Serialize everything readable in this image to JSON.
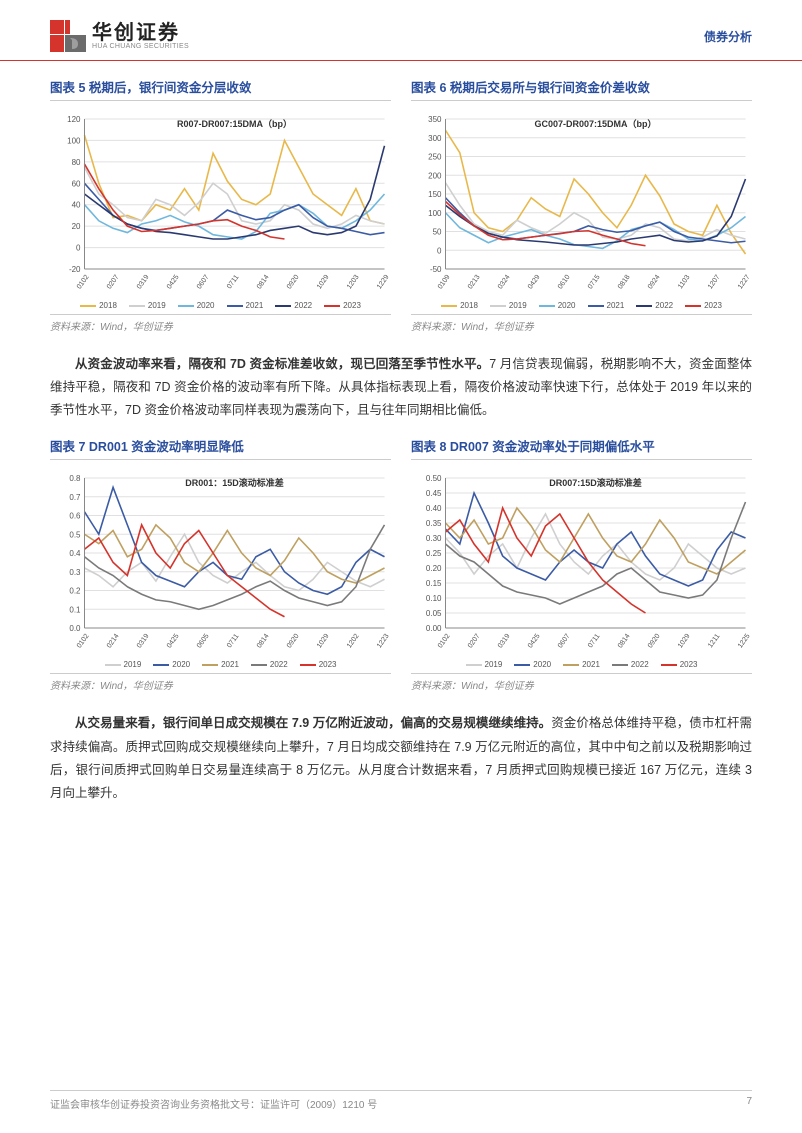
{
  "header": {
    "company_cn": "华创证券",
    "company_en": "HUA CHUANG SECURITIES",
    "category": "债券分析",
    "logo_red": "#d4342c",
    "logo_gray": "#6b6b6b"
  },
  "charts": {
    "c5": {
      "title": "图表 5   税期后，银行间资金分层收敛",
      "series_label": "R007-DR007:15DMA（bp）",
      "ylim": [
        -20,
        120
      ],
      "ytick_step": 20,
      "xticks": [
        "0102",
        "0207",
        "0319",
        "0425",
        "0607",
        "0711",
        "0814",
        "0920",
        "1029",
        "1203",
        "1229"
      ],
      "source": "资料来源：Wind，华创证券",
      "bg": "#ffffff",
      "grid": "#e0e0e0",
      "series": [
        {
          "year": "2018",
          "color": "#e8b84a",
          "data": [
            105,
            60,
            28,
            30,
            25,
            40,
            35,
            55,
            35,
            88,
            62,
            45,
            40,
            50,
            100,
            75,
            50,
            40,
            30,
            55,
            25,
            22
          ]
        },
        {
          "year": "2019",
          "color": "#cfcfcf",
          "data": [
            75,
            50,
            40,
            28,
            25,
            45,
            40,
            30,
            42,
            60,
            50,
            25,
            22,
            25,
            40,
            35,
            22,
            18,
            22,
            30,
            25,
            22
          ]
        },
        {
          "year": "2020",
          "color": "#6fb7dd",
          "data": [
            40,
            25,
            18,
            14,
            22,
            25,
            30,
            24,
            20,
            12,
            10,
            8,
            15,
            32,
            35,
            40,
            32,
            20,
            18,
            25,
            35,
            50
          ]
        },
        {
          "year": "2021",
          "color": "#3b5ba5",
          "data": [
            60,
            45,
            30,
            22,
            18,
            16,
            18,
            20,
            22,
            25,
            35,
            30,
            26,
            28,
            35,
            40,
            28,
            20,
            18,
            15,
            12,
            14
          ]
        },
        {
          "year": "2022",
          "color": "#2a3a70",
          "data": [
            50,
            40,
            30,
            22,
            18,
            15,
            14,
            12,
            10,
            8,
            8,
            10,
            12,
            16,
            18,
            20,
            14,
            12,
            14,
            20,
            45,
            95
          ]
        },
        {
          "year": "2023",
          "color": "#d4342c",
          "data": [
            78,
            55,
            35,
            20,
            15,
            16,
            18,
            20,
            22,
            25,
            26,
            20,
            16,
            10,
            8
          ]
        }
      ]
    },
    "c6": {
      "title": "图表 6   税期后交易所与银行间资金价差收敛",
      "series_label": "GC007-DR007:15DMA（bp）",
      "ylim": [
        -50,
        350
      ],
      "ytick_step": 50,
      "xticks": [
        "0109",
        "0213",
        "0324",
        "0429",
        "0610",
        "0715",
        "0818",
        "0924",
        "1103",
        "1207",
        "1227"
      ],
      "source": "资料来源：Wind，华创证券",
      "bg": "#ffffff",
      "grid": "#e0e0e0",
      "series": [
        {
          "year": "2018",
          "color": "#e8b84a",
          "data": [
            320,
            260,
            100,
            60,
            50,
            80,
            140,
            110,
            90,
            190,
            150,
            100,
            60,
            120,
            200,
            145,
            70,
            50,
            40,
            120,
            45,
            -10
          ]
        },
        {
          "year": "2019",
          "color": "#cfcfcf",
          "data": [
            180,
            120,
            70,
            50,
            40,
            80,
            60,
            45,
            70,
            100,
            80,
            35,
            30,
            40,
            70,
            60,
            30,
            25,
            35,
            55,
            40,
            30
          ]
        },
        {
          "year": "2020",
          "color": "#6fb7dd",
          "data": [
            100,
            60,
            40,
            20,
            35,
            45,
            55,
            40,
            30,
            15,
            10,
            5,
            25,
            55,
            65,
            75,
            55,
            30,
            25,
            40,
            60,
            90
          ]
        },
        {
          "year": "2021",
          "color": "#3b5ba5",
          "data": [
            140,
            100,
            65,
            45,
            35,
            30,
            35,
            40,
            45,
            50,
            65,
            55,
            48,
            52,
            65,
            75,
            50,
            35,
            30,
            25,
            20,
            24
          ]
        },
        {
          "year": "2022",
          "color": "#2a3a70",
          "data": [
            120,
            90,
            65,
            45,
            35,
            28,
            25,
            22,
            18,
            14,
            14,
            18,
            22,
            30,
            35,
            40,
            26,
            22,
            25,
            38,
            90,
            190
          ]
        },
        {
          "year": "2023",
          "color": "#d4342c",
          "data": [
            130,
            95,
            65,
            40,
            28,
            30,
            35,
            40,
            44,
            50,
            52,
            40,
            30,
            18,
            12
          ]
        }
      ]
    },
    "c7": {
      "title": "图表 7   DR001 资金波动率明显降低",
      "series_label": "DR001：15D滚动标准差",
      "ylim": [
        0,
        0.8
      ],
      "ytick_step": 0.1,
      "xticks": [
        "0102",
        "0214",
        "0319",
        "0425",
        "0605",
        "0711",
        "0814",
        "0920",
        "1029",
        "1202",
        "1223"
      ],
      "source": "资料来源：Wind，华创证券",
      "bg": "#ffffff",
      "grid": "#e0e0e0",
      "series": [
        {
          "year": "2019",
          "color": "#cfcfcf",
          "data": [
            0.32,
            0.28,
            0.22,
            0.3,
            0.35,
            0.25,
            0.38,
            0.5,
            0.35,
            0.28,
            0.24,
            0.3,
            0.35,
            0.28,
            0.22,
            0.2,
            0.26,
            0.35,
            0.3,
            0.25,
            0.22,
            0.26
          ]
        },
        {
          "year": "2020",
          "color": "#3b5ba5",
          "data": [
            0.62,
            0.5,
            0.75,
            0.55,
            0.35,
            0.28,
            0.25,
            0.22,
            0.3,
            0.35,
            0.28,
            0.26,
            0.38,
            0.42,
            0.3,
            0.24,
            0.2,
            0.18,
            0.22,
            0.35,
            0.42,
            0.38
          ]
        },
        {
          "year": "2021",
          "color": "#bfa060",
          "data": [
            0.5,
            0.45,
            0.52,
            0.38,
            0.42,
            0.55,
            0.48,
            0.35,
            0.3,
            0.4,
            0.52,
            0.4,
            0.32,
            0.28,
            0.36,
            0.48,
            0.4,
            0.3,
            0.26,
            0.24,
            0.28,
            0.32
          ]
        },
        {
          "year": "2022",
          "color": "#7a7a7a",
          "data": [
            0.38,
            0.32,
            0.28,
            0.22,
            0.18,
            0.15,
            0.14,
            0.12,
            0.1,
            0.12,
            0.15,
            0.18,
            0.22,
            0.25,
            0.2,
            0.16,
            0.14,
            0.12,
            0.14,
            0.22,
            0.42,
            0.55
          ]
        },
        {
          "year": "2023",
          "color": "#d4342c",
          "data": [
            0.42,
            0.48,
            0.35,
            0.28,
            0.55,
            0.4,
            0.32,
            0.45,
            0.52,
            0.4,
            0.28,
            0.22,
            0.16,
            0.1,
            0.06
          ]
        }
      ]
    },
    "c8": {
      "title": "图表 8   DR007 资金波动率处于同期偏低水平",
      "series_label": "DR007:15D滚动标准差",
      "ylim": [
        0,
        0.5
      ],
      "ytick_step": 0.05,
      "xticks": [
        "0102",
        "0207",
        "0319",
        "0425",
        "0607",
        "0711",
        "0814",
        "0920",
        "1029",
        "1211",
        "1225"
      ],
      "source": "资料来源：Wind，华创证券",
      "bg": "#ffffff",
      "grid": "#e0e0e0",
      "series": [
        {
          "year": "2019",
          "color": "#cfcfcf",
          "data": [
            0.3,
            0.25,
            0.18,
            0.24,
            0.28,
            0.2,
            0.3,
            0.38,
            0.28,
            0.22,
            0.18,
            0.24,
            0.28,
            0.22,
            0.18,
            0.16,
            0.2,
            0.28,
            0.24,
            0.2,
            0.18,
            0.2
          ]
        },
        {
          "year": "2020",
          "color": "#3b5ba5",
          "data": [
            0.33,
            0.28,
            0.45,
            0.35,
            0.24,
            0.2,
            0.18,
            0.16,
            0.22,
            0.26,
            0.22,
            0.2,
            0.28,
            0.32,
            0.24,
            0.18,
            0.16,
            0.14,
            0.16,
            0.26,
            0.32,
            0.3
          ]
        },
        {
          "year": "2021",
          "color": "#bfa060",
          "data": [
            0.35,
            0.3,
            0.36,
            0.28,
            0.3,
            0.4,
            0.34,
            0.26,
            0.22,
            0.3,
            0.38,
            0.3,
            0.24,
            0.22,
            0.28,
            0.36,
            0.3,
            0.22,
            0.2,
            0.18,
            0.22,
            0.26
          ]
        },
        {
          "year": "2022",
          "color": "#7a7a7a",
          "data": [
            0.28,
            0.24,
            0.22,
            0.18,
            0.14,
            0.12,
            0.11,
            0.1,
            0.08,
            0.1,
            0.12,
            0.14,
            0.18,
            0.2,
            0.16,
            0.12,
            0.11,
            0.1,
            0.11,
            0.16,
            0.3,
            0.42
          ]
        },
        {
          "year": "2023",
          "color": "#d4342c",
          "data": [
            0.32,
            0.36,
            0.28,
            0.22,
            0.4,
            0.3,
            0.24,
            0.34,
            0.38,
            0.3,
            0.22,
            0.16,
            0.12,
            0.08,
            0.05
          ]
        }
      ]
    }
  },
  "para1": {
    "bold": "从资金波动率来看，隔夜和 7D 资金标准差收敛，现已回落至季节性水平。",
    "rest": "7 月信贷表现偏弱，税期影响不大，资金面整体维持平稳，隔夜和 7D 资金价格的波动率有所下降。从具体指标表现上看，隔夜价格波动率快速下行，总体处于 2019 年以来的季节性水平，7D 资金价格波动率同样表现为震荡向下，且与往年同期相比偏低。"
  },
  "para2": {
    "bold": "从交易量来看，银行间单日成交规模在 7.9 万亿附近波动，偏高的交易规模继续维持。",
    "rest": "资金价格总体维持平稳，债市杠杆需求持续偏高。质押式回购成交规模继续向上攀升，7 月日均成交额维持在 7.9 万亿元附近的高位，其中中旬之前以及税期影响过后，银行间质押式回购单日交易量连续高于 8 万亿元。从月度合计数据来看，7 月质押式回购规模已接近 167 万亿元，连续 3 月向上攀升。"
  },
  "footer": {
    "left": "证监会审核华创证券投资咨询业务资格批文号：证监许可（2009）1210 号",
    "page": "7"
  }
}
